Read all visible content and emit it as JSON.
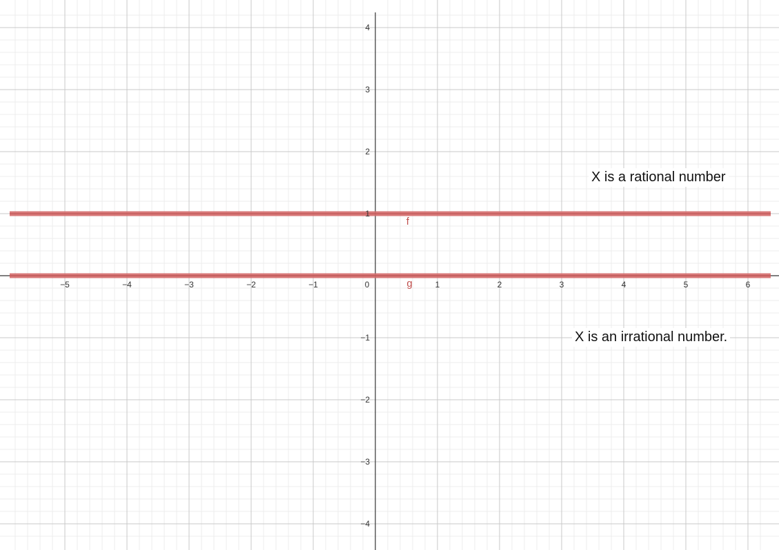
{
  "chart_data": {
    "type": "line",
    "xlim": [
      -5.85,
      6.35
    ],
    "ylim": [
      -4.2,
      4.3
    ],
    "x_ticks": [
      -5,
      -4,
      -3,
      -2,
      -1,
      1,
      2,
      3,
      4,
      5,
      6
    ],
    "y_ticks": [
      -4,
      -3,
      -2,
      -1,
      1,
      2,
      3,
      4
    ],
    "x_tick_labels": [
      "−5",
      "−4",
      "−3",
      "−2",
      "−1",
      "1",
      "2",
      "3",
      "4",
      "5",
      "6"
    ],
    "y_tick_labels": [
      "−4",
      "−3",
      "−2",
      "−1",
      "1",
      "2",
      "3",
      "4"
    ],
    "origin_label": "0",
    "grid": true,
    "minor_grid_per_unit": 5,
    "series": [
      {
        "name": "f",
        "y_constant": 1,
        "label_x": 0.52,
        "label_y": 0.88
      },
      {
        "name": "g",
        "y_constant": 0,
        "label_x": 0.55,
        "label_y": -0.12
      }
    ],
    "annotations": [
      {
        "text": "X is a rational number",
        "x": 3.5,
        "y": 1.6
      },
      {
        "text": "X is an irrational number.",
        "x": 3.2,
        "y": -0.95
      }
    ]
  },
  "colors": {
    "series_line": "#d46a6a",
    "series_label": "#c0504d",
    "major_grid": "#c9c9c9",
    "minor_grid": "#ececec",
    "axis": "#333333"
  }
}
